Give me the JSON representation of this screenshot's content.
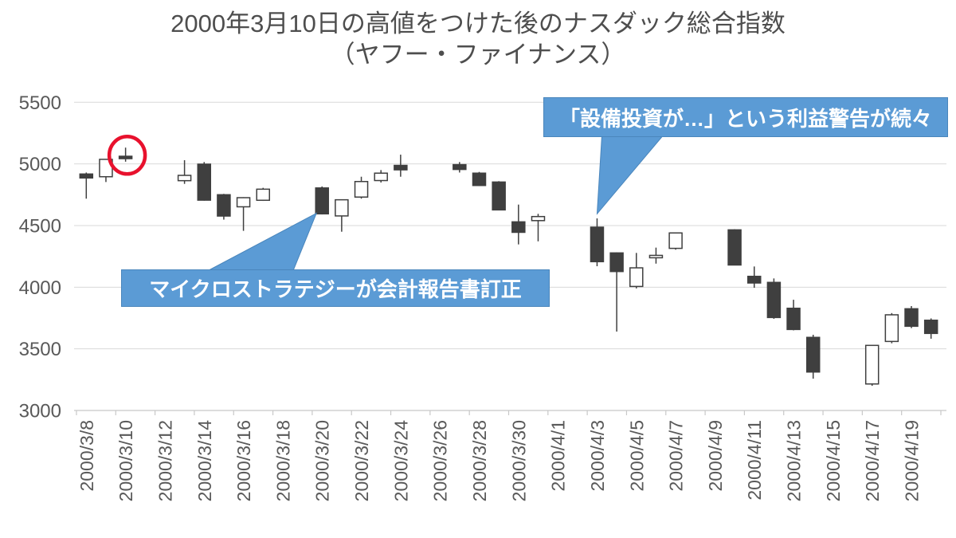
{
  "title": {
    "line1": "2000年3月10日の高値をつけた後のナスダック総合指数",
    "line2": "（ヤフー・ファイナンス）"
  },
  "annotations": {
    "microstrategy": {
      "text": "マイクロストラテジーが会計報告書訂正",
      "target_date": "2000/3/20",
      "target_value": 4600
    },
    "capex_warning": {
      "text": "「設備投資が…」という利益警告が続々",
      "target_date": "2000/4/3",
      "target_value": 4595
    }
  },
  "colors": {
    "annotation_bg": "#5B9BD5",
    "annotation_border": "#4A86BC",
    "annotation_text": "#FFFFFF",
    "candle_up_fill": "#FFFFFF",
    "candle_down_fill": "#3F3F3F",
    "candle_border": "#3F3F3F",
    "gridline": "#D9D9D9",
    "axis_line": "#C8C8C8",
    "axis_text": "#595959",
    "title_text": "#4E4E4E",
    "circle_marker": "#E8112D"
  },
  "chart_data": {
    "type": "candlestick",
    "title": "2000年3月10日の高値をつけた後のナスダック総合指数（ヤフー・ファイナンス）",
    "xlabel": "",
    "ylabel": "",
    "grid": true,
    "legend": false,
    "y_axis": {
      "min": 3000,
      "max": 5500,
      "step": 500,
      "ticks": [
        5500,
        5000,
        4500,
        4000,
        3500,
        3000
      ]
    },
    "x_axis": {
      "tick_labels": [
        "2000/3/8",
        "2000/3/10",
        "2000/3/12",
        "2000/3/14",
        "2000/3/16",
        "2000/3/18",
        "2000/3/20",
        "2000/3/22",
        "2000/3/24",
        "2000/3/26",
        "2000/3/28",
        "2000/3/30",
        "2000/4/1",
        "2000/4/3",
        "2000/4/5",
        "2000/4/7",
        "2000/4/9",
        "2000/4/11",
        "2000/4/13",
        "2000/4/15",
        "2000/4/17",
        "2000/4/19"
      ]
    },
    "highlight": {
      "date": "2000/3/10",
      "value": 5070,
      "marker": "red-circle"
    },
    "series": [
      {
        "date": "2000/3/8",
        "open": 4918,
        "high": 4930,
        "low": 4718,
        "close": 4886
      },
      {
        "date": "2000/3/9",
        "open": 4896,
        "high": 5040,
        "low": 4853,
        "close": 5037
      },
      {
        "date": "2000/3/10",
        "open": 5062,
        "high": 5132,
        "low": 5018,
        "close": 5049
      },
      {
        "date": "2000/3/13",
        "open": 4864,
        "high": 5030,
        "low": 4838,
        "close": 4907
      },
      {
        "date": "2000/3/14",
        "open": 4998,
        "high": 5015,
        "low": 4702,
        "close": 4706
      },
      {
        "date": "2000/3/15",
        "open": 4750,
        "high": 4757,
        "low": 4548,
        "close": 4577
      },
      {
        "date": "2000/3/16",
        "open": 4652,
        "high": 4730,
        "low": 4457,
        "close": 4726
      },
      {
        "date": "2000/3/17",
        "open": 4705,
        "high": 4806,
        "low": 4700,
        "close": 4795
      },
      {
        "date": "2000/3/20",
        "open": 4805,
        "high": 4817,
        "low": 4590,
        "close": 4595
      },
      {
        "date": "2000/3/21",
        "open": 4578,
        "high": 4712,
        "low": 4450,
        "close": 4709
      },
      {
        "date": "2000/3/22",
        "open": 4731,
        "high": 4896,
        "low": 4718,
        "close": 4857
      },
      {
        "date": "2000/3/23",
        "open": 4865,
        "high": 4950,
        "low": 4849,
        "close": 4925
      },
      {
        "date": "2000/3/24",
        "open": 4988,
        "high": 5075,
        "low": 4896,
        "close": 4952
      },
      {
        "date": "2000/3/27",
        "open": 4994,
        "high": 5015,
        "low": 4930,
        "close": 4955
      },
      {
        "date": "2000/3/28",
        "open": 4925,
        "high": 4935,
        "low": 4820,
        "close": 4825
      },
      {
        "date": "2000/3/29",
        "open": 4853,
        "high": 4860,
        "low": 4625,
        "close": 4627
      },
      {
        "date": "2000/3/30",
        "open": 4530,
        "high": 4670,
        "low": 4347,
        "close": 4445
      },
      {
        "date": "2000/3/31",
        "open": 4540,
        "high": 4595,
        "low": 4372,
        "close": 4573
      },
      {
        "date": "2000/4/3",
        "open": 4487,
        "high": 4558,
        "low": 4170,
        "close": 4207
      },
      {
        "date": "2000/4/4",
        "open": 4278,
        "high": 4282,
        "low": 3640,
        "close": 4127
      },
      {
        "date": "2000/4/5",
        "open": 4006,
        "high": 4278,
        "low": 3990,
        "close": 4157
      },
      {
        "date": "2000/4/6",
        "open": 4250,
        "high": 4321,
        "low": 4191,
        "close": 4258
      },
      {
        "date": "2000/4/7",
        "open": 4315,
        "high": 4445,
        "low": 4304,
        "close": 4440
      },
      {
        "date": "2000/4/10",
        "open": 4465,
        "high": 4470,
        "low": 4178,
        "close": 4180
      },
      {
        "date": "2000/4/11",
        "open": 4088,
        "high": 4168,
        "low": 3995,
        "close": 4034
      },
      {
        "date": "2000/4/12",
        "open": 4039,
        "high": 4071,
        "low": 3743,
        "close": 3754
      },
      {
        "date": "2000/4/13",
        "open": 3829,
        "high": 3898,
        "low": 3650,
        "close": 3657
      },
      {
        "date": "2000/4/14",
        "open": 3593,
        "high": 3614,
        "low": 3258,
        "close": 3312
      },
      {
        "date": "2000/4/17",
        "open": 3215,
        "high": 3530,
        "low": 3200,
        "close": 3528
      },
      {
        "date": "2000/4/18",
        "open": 3560,
        "high": 3790,
        "low": 3545,
        "close": 3776
      },
      {
        "date": "2000/4/19",
        "open": 3825,
        "high": 3847,
        "low": 3668,
        "close": 3683
      },
      {
        "date": "2000/4/20",
        "open": 3732,
        "high": 3747,
        "low": 3582,
        "close": 3625
      }
    ]
  }
}
